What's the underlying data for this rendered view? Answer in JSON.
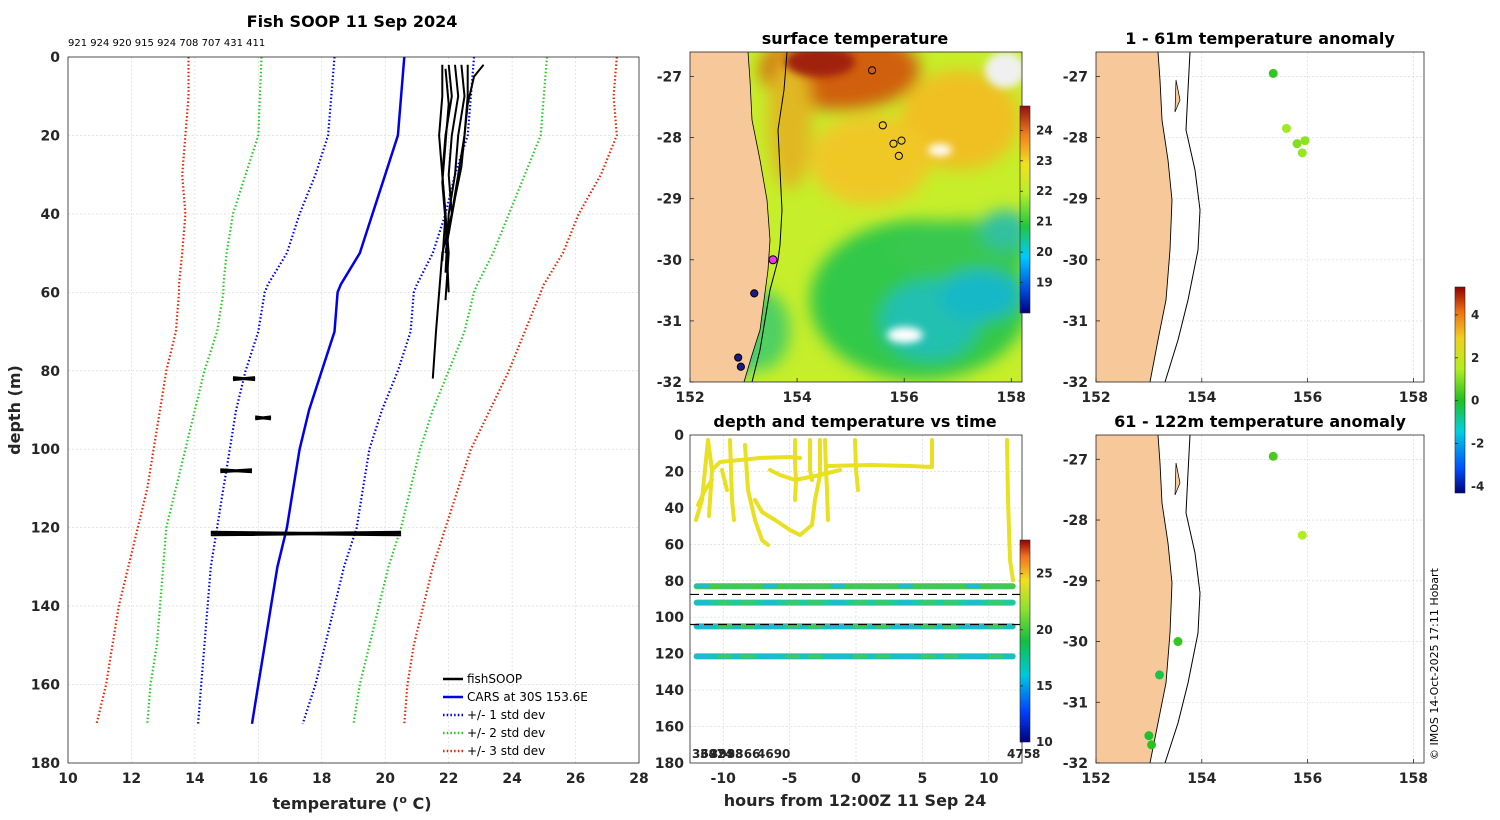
{
  "copyright": "© IMOS 14-Oct-2025 17:11 Hobart",
  "colors": {
    "land": "#f7c89a",
    "profile": "#000000",
    "cars": "#0000ee",
    "std1": "#0000ee",
    "std2": "#22cc22",
    "std3": "#ee2200",
    "marker_magenta": "#ee33ee"
  },
  "chart_data": [
    {
      "id": "profile",
      "type": "line",
      "title": "Fish SOOP 11 Sep 2024",
      "subtitle": "921 924 920 915 924 708 707 431 411",
      "xlabel": "temperature (°C)",
      "xlabel_main": "temperature (",
      "xlabel_sup": "o",
      "xlabel_end": " C)",
      "ylabel": "depth (m)",
      "xlim": [
        10,
        28
      ],
      "ylim": [
        0,
        180
      ],
      "y_reversed": true,
      "xticks": [
        "10",
        "12",
        "14",
        "16",
        "18",
        "20",
        "22",
        "24",
        "26",
        "28"
      ],
      "yticks": [
        "0",
        "20",
        "40",
        "60",
        "80",
        "100",
        "120",
        "140",
        "160",
        "180"
      ],
      "legend_position": "bottom-right",
      "legend": [
        "fishSOOP",
        "CARS at 30S 153.6E",
        "+/- 1 std dev",
        "+/- 2 std dev",
        "+/- 3 std dev"
      ],
      "series": [
        {
          "name": "CARS at 30S 153.6E",
          "style": "solid",
          "color_key": "cars",
          "points": [
            [
              20.6,
              0
            ],
            [
              20.5,
              10
            ],
            [
              20.4,
              20
            ],
            [
              20.0,
              30
            ],
            [
              19.6,
              40
            ],
            [
              19.2,
              50
            ],
            [
              18.6,
              58
            ],
            [
              18.5,
              60
            ],
            [
              18.4,
              70
            ],
            [
              18.0,
              80
            ],
            [
              17.6,
              90
            ],
            [
              17.3,
              100
            ],
            [
              17.1,
              110
            ],
            [
              16.9,
              120
            ],
            [
              16.6,
              130
            ],
            [
              16.4,
              140
            ],
            [
              16.2,
              150
            ],
            [
              16.0,
              160
            ],
            [
              15.8,
              170
            ]
          ]
        },
        {
          "name": "+1 std dev",
          "style": "dotted",
          "color_key": "std1",
          "points": [
            [
              22.8,
              0
            ],
            [
              22.7,
              10
            ],
            [
              22.6,
              20
            ],
            [
              22.2,
              30
            ],
            [
              21.9,
              40
            ],
            [
              21.5,
              50
            ],
            [
              21.0,
              58
            ],
            [
              20.9,
              60
            ],
            [
              20.8,
              70
            ],
            [
              20.4,
              80
            ],
            [
              19.9,
              90
            ],
            [
              19.5,
              100
            ],
            [
              19.3,
              110
            ],
            [
              19.1,
              120
            ],
            [
              18.7,
              130
            ],
            [
              18.4,
              140
            ],
            [
              18.1,
              150
            ],
            [
              17.8,
              160
            ],
            [
              17.4,
              170
            ]
          ]
        },
        {
          "name": "-1 std dev",
          "style": "dotted",
          "color_key": "std1",
          "points": [
            [
              18.4,
              0
            ],
            [
              18.3,
              10
            ],
            [
              18.2,
              20
            ],
            [
              17.8,
              30
            ],
            [
              17.3,
              40
            ],
            [
              16.9,
              50
            ],
            [
              16.3,
              58
            ],
            [
              16.2,
              60
            ],
            [
              16.0,
              70
            ],
            [
              15.6,
              80
            ],
            [
              15.3,
              90
            ],
            [
              15.1,
              100
            ],
            [
              14.9,
              110
            ],
            [
              14.7,
              120
            ],
            [
              14.5,
              130
            ],
            [
              14.4,
              140
            ],
            [
              14.3,
              150
            ],
            [
              14.2,
              160
            ],
            [
              14.1,
              170
            ]
          ]
        },
        {
          "name": "+2 std dev",
          "style": "dotted",
          "color_key": "std2",
          "points": [
            [
              25.1,
              0
            ],
            [
              25.0,
              10
            ],
            [
              24.9,
              20
            ],
            [
              24.4,
              30
            ],
            [
              23.9,
              40
            ],
            [
              23.4,
              50
            ],
            [
              22.9,
              58
            ],
            [
              22.8,
              60
            ],
            [
              22.5,
              70
            ],
            [
              22.0,
              80
            ],
            [
              21.5,
              90
            ],
            [
              21.1,
              100
            ],
            [
              20.8,
              110
            ],
            [
              20.5,
              120
            ],
            [
              20.1,
              130
            ],
            [
              19.8,
              140
            ],
            [
              19.5,
              150
            ],
            [
              19.2,
              160
            ],
            [
              19.0,
              170
            ]
          ]
        },
        {
          "name": "-2 std dev",
          "style": "dotted",
          "color_key": "std2",
          "points": [
            [
              16.1,
              0
            ],
            [
              16.05,
              10
            ],
            [
              16.0,
              20
            ],
            [
              15.6,
              30
            ],
            [
              15.2,
              40
            ],
            [
              15.0,
              50
            ],
            [
              14.9,
              58
            ],
            [
              14.9,
              60
            ],
            [
              14.7,
              70
            ],
            [
              14.3,
              80
            ],
            [
              14.0,
              90
            ],
            [
              13.7,
              100
            ],
            [
              13.4,
              110
            ],
            [
              13.1,
              120
            ],
            [
              13.0,
              130
            ],
            [
              12.9,
              140
            ],
            [
              12.8,
              150
            ],
            [
              12.6,
              160
            ],
            [
              12.5,
              170
            ]
          ]
        },
        {
          "name": "+3 std dev",
          "style": "dotted",
          "color_key": "std3",
          "points": [
            [
              27.3,
              0
            ],
            [
              27.2,
              10
            ],
            [
              27.3,
              20
            ],
            [
              26.8,
              30
            ],
            [
              26.1,
              40
            ],
            [
              25.6,
              50
            ],
            [
              25.0,
              58
            ],
            [
              24.9,
              60
            ],
            [
              24.4,
              70
            ],
            [
              23.9,
              80
            ],
            [
              23.3,
              90
            ],
            [
              22.7,
              100
            ],
            [
              22.3,
              110
            ],
            [
              21.9,
              120
            ],
            [
              21.5,
              130
            ],
            [
              21.2,
              140
            ],
            [
              20.9,
              150
            ],
            [
              20.7,
              160
            ],
            [
              20.6,
              170
            ]
          ]
        },
        {
          "name": "-3 std dev",
          "style": "dotted",
          "color_key": "std3",
          "points": [
            [
              13.8,
              0
            ],
            [
              13.8,
              10
            ],
            [
              13.7,
              20
            ],
            [
              13.6,
              30
            ],
            [
              13.7,
              40
            ],
            [
              13.6,
              50
            ],
            [
              13.5,
              58
            ],
            [
              13.5,
              60
            ],
            [
              13.4,
              70
            ],
            [
              13.1,
              80
            ],
            [
              12.9,
              90
            ],
            [
              12.7,
              100
            ],
            [
              12.5,
              110
            ],
            [
              12.2,
              120
            ],
            [
              11.9,
              130
            ],
            [
              11.6,
              140
            ],
            [
              11.4,
              150
            ],
            [
              11.2,
              160
            ],
            [
              10.9,
              170
            ]
          ]
        }
      ],
      "profiles": [
        [
          [
            21.8,
            2
          ],
          [
            21.8,
            10
          ],
          [
            21.7,
            20
          ],
          [
            21.8,
            30
          ],
          [
            21.9,
            40
          ],
          [
            22.0,
            50
          ],
          [
            21.9,
            62
          ]
        ],
        [
          [
            22.0,
            2
          ],
          [
            22.1,
            10
          ],
          [
            21.9,
            20
          ],
          [
            21.8,
            30
          ],
          [
            21.9,
            40
          ],
          [
            21.8,
            52
          ]
        ],
        [
          [
            22.2,
            2
          ],
          [
            22.3,
            10
          ],
          [
            22.1,
            20
          ],
          [
            22.0,
            30
          ],
          [
            22.1,
            40
          ],
          [
            21.9,
            50
          ]
        ],
        [
          [
            22.4,
            2
          ],
          [
            22.5,
            10
          ],
          [
            22.3,
            20
          ],
          [
            22.2,
            30
          ],
          [
            22.0,
            40
          ],
          [
            21.9,
            55
          ]
        ],
        [
          [
            22.6,
            2
          ],
          [
            22.6,
            10
          ],
          [
            22.5,
            20
          ],
          [
            22.3,
            30
          ],
          [
            22.1,
            40
          ],
          [
            21.8,
            50
          ],
          [
            21.6,
            70
          ],
          [
            21.5,
            82
          ]
        ],
        [
          [
            23.1,
            2
          ],
          [
            22.8,
            5
          ],
          [
            22.6,
            12
          ],
          [
            22.5,
            20
          ],
          [
            22.4,
            28
          ],
          [
            22.2,
            36
          ],
          [
            22.0,
            45
          ]
        ],
        [
          [
            21.9,
            3
          ],
          [
            22.0,
            12
          ],
          [
            21.9,
            22
          ],
          [
            21.8,
            32
          ],
          [
            21.9,
            42
          ],
          [
            22.0,
            60
          ]
        ]
      ],
      "horizontal_runs": [
        {
          "depth": 82,
          "x0": 15.2,
          "x1": 15.9
        },
        {
          "depth": 92,
          "x0": 15.9,
          "x1": 16.4
        },
        {
          "depth": 105.5,
          "x0": 14.8,
          "x1": 15.8
        },
        {
          "depth": 121.5,
          "x0": 14.5,
          "x1": 20.5
        }
      ]
    },
    {
      "id": "sst_map",
      "type": "heatmap",
      "title": "surface temperature",
      "xlim": [
        152,
        158.2
      ],
      "ylim": [
        -32,
        -26.6
      ],
      "xticks": [
        "152",
        "154",
        "156",
        "158"
      ],
      "yticks": [
        "-27",
        "-28",
        "-29",
        "-30",
        "-31",
        "-32"
      ],
      "colorbar_range": [
        18,
        24.8
      ],
      "colorbar_ticks": [
        "19",
        "20",
        "21",
        "22",
        "23",
        "24"
      ],
      "stations": [
        {
          "lon": 155.4,
          "lat": -26.9,
          "fill": "none"
        },
        {
          "lon": 155.6,
          "lat": -27.8,
          "fill": "none"
        },
        {
          "lon": 155.8,
          "lat": -28.1,
          "fill": "none"
        },
        {
          "lon": 155.95,
          "lat": -28.05,
          "fill": "none"
        },
        {
          "lon": 155.9,
          "lat": -28.3,
          "fill": "none"
        },
        {
          "lon": 153.2,
          "lat": -30.55,
          "fill": "#1a1a8a"
        },
        {
          "lon": 152.9,
          "lat": -31.6,
          "fill": "#1a1a8a"
        },
        {
          "lon": 152.95,
          "lat": -31.75,
          "fill": "#1a1a8a"
        },
        {
          "lon": 153.55,
          "lat": -30.0,
          "fill": "magenta"
        }
      ]
    },
    {
      "id": "time_series",
      "type": "scatter",
      "title": "depth and temperature vs time",
      "xlabel": "hours from 12:00Z 11 Sep 24",
      "xlim": [
        -12.5,
        12.5
      ],
      "ylim": [
        0,
        180
      ],
      "y_reversed": true,
      "xticks": [
        "-10",
        "-5",
        "0",
        "5",
        "10"
      ],
      "yticks": [
        "0",
        "20",
        "40",
        "60",
        "80",
        "100",
        "120",
        "140",
        "160",
        "180"
      ],
      "colorbar_range": [
        10,
        28
      ],
      "colorbar_ticks": [
        "10",
        "15",
        "20",
        "25"
      ],
      "bottom_labels_left": [
        "3692",
        "3474",
        "3998",
        "3366",
        "4690"
      ],
      "bottom_label_right": "4758",
      "dashed_lines": [
        87.5,
        104
      ],
      "bands": [
        {
          "depth": 83,
          "temp": 21
        },
        {
          "depth": 92,
          "temp": 19
        },
        {
          "depth": 105,
          "temp": 18
        },
        {
          "depth": 121.5,
          "temp": 18
        }
      ]
    },
    {
      "id": "anomaly_1_61",
      "type": "scatter",
      "title": "1 - 61m temperature anomaly",
      "xlim": [
        152,
        158.2
      ],
      "ylim": [
        -32,
        -26.6
      ],
      "xticks": [
        "152",
        "154",
        "156",
        "158"
      ],
      "yticks": [
        "-27",
        "-28",
        "-29",
        "-30",
        "-31",
        "-32"
      ],
      "points": [
        {
          "lon": 155.35,
          "lat": -26.95,
          "anomaly": 0.2
        },
        {
          "lon": 155.6,
          "lat": -27.85,
          "anomaly": 1.3
        },
        {
          "lon": 155.8,
          "lat": -28.1,
          "anomaly": 1.0
        },
        {
          "lon": 155.95,
          "lat": -28.05,
          "anomaly": 1.1
        },
        {
          "lon": 155.9,
          "lat": -28.25,
          "anomaly": 1.2
        }
      ]
    },
    {
      "id": "anomaly_61_122",
      "type": "scatter",
      "title": "61 - 122m temperature anomaly",
      "xlim": [
        152,
        158.2
      ],
      "ylim": [
        -32,
        -26.6
      ],
      "xticks": [
        "152",
        "154",
        "156",
        "158"
      ],
      "yticks": [
        "-27",
        "-28",
        "-29",
        "-30",
        "-31",
        "-32"
      ],
      "points": [
        {
          "lon": 155.35,
          "lat": -26.95,
          "anomaly": 0.4
        },
        {
          "lon": 155.9,
          "lat": -28.25,
          "anomaly": 1.5
        },
        {
          "lon": 153.55,
          "lat": -30.0,
          "anomaly": 0.2
        },
        {
          "lon": 153.2,
          "lat": -30.55,
          "anomaly": -0.3
        },
        {
          "lon": 153.0,
          "lat": -31.55,
          "anomaly": -0.1
        },
        {
          "lon": 153.05,
          "lat": -31.7,
          "anomaly": 0.1
        }
      ]
    },
    {
      "id": "anomaly_colorbar",
      "type": "heatmap",
      "colorbar_range": [
        -4.3,
        5.3
      ],
      "colorbar_ticks": [
        "-4",
        "-2",
        "0",
        "2",
        "4"
      ]
    }
  ]
}
